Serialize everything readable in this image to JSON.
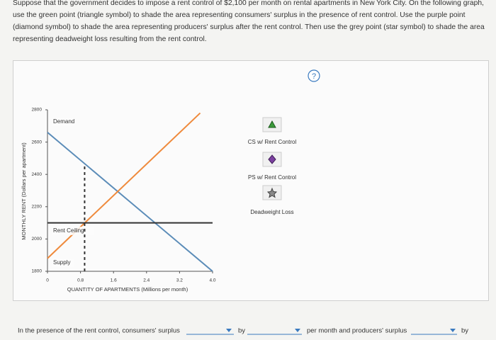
{
  "question": "Suppose that the government decides to impose a rent control of $2,100 per month on rental apartments in New York City. On the following graph, use the green point (triangle symbol) to shade the area representing consumers' surplus in the presence of rent control. Use the purple point (diamond symbol) to shade the area representing producers' surplus after the rent control. Then use the grey point (star symbol) to shade the area representing deadweight loss resulting from the rent control.",
  "help_icon": "?",
  "chart_data": {
    "type": "line",
    "xlabel": "QUANTITY OF APARTMENTS (Millions per month)",
    "ylabel": "MONTHLY RENT (Dollars per apartment)",
    "xlim": [
      0,
      4
    ],
    "ylim": [
      1800,
      2800
    ],
    "xticks": [
      0,
      0.8,
      1.6,
      2.4,
      3.2,
      {
        "value": 4,
        "label": "4.0"
      }
    ],
    "yticks": [
      1800,
      2000,
      2200,
      2400,
      2600,
      2800
    ],
    "series": [
      {
        "name": "Demand",
        "color": "#5b8cb8",
        "x": [
          0,
          4
        ],
        "values": [
          2660,
          1800
        ]
      },
      {
        "name": "Supply",
        "color": "#ef8a3c",
        "x": [
          0,
          3.7
        ],
        "values": [
          1880,
          2780
        ]
      },
      {
        "name": "Rent Ceiling",
        "color": "#333333",
        "x": [
          0,
          4
        ],
        "values": [
          2100,
          2100
        ]
      },
      {
        "color": "#333333",
        "dashed": true,
        "x": [
          0.9,
          0.9
        ],
        "values": [
          1800,
          2466
        ]
      }
    ]
  },
  "palette": [
    {
      "label": "CS w/ Rent Control",
      "color": "#3a9a3a"
    },
    {
      "label": "PS w/ Rent Control",
      "color": "#7b3fa0"
    },
    {
      "label": "Deadweight Loss",
      "color": "#8a8a8a"
    }
  ],
  "answer_sentence": [
    "In the presence of the rent control, consumers' surplus",
    "by",
    "per month and producers' surplus",
    "by"
  ]
}
